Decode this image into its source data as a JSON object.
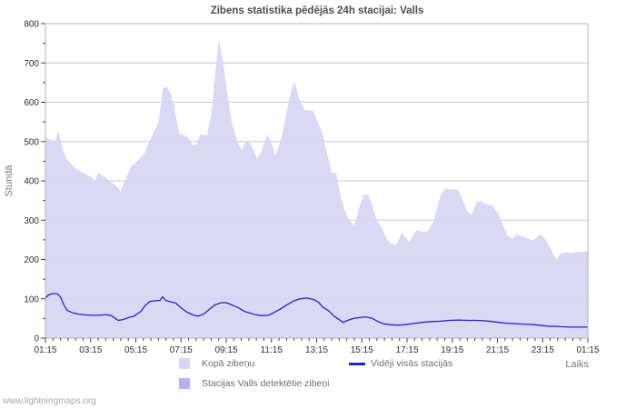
{
  "watermark": "www.lightningmaps.org",
  "chart_data": {
    "type": "area",
    "title": "Zibens statistika pēdējās 24h stacijai: Valls",
    "xlabel": "Laiks",
    "ylabel": "Stundā",
    "ylim": [
      0,
      800
    ],
    "yticks": [
      0,
      100,
      200,
      300,
      400,
      500,
      600,
      700,
      800
    ],
    "x_range_hours": [
      1.25,
      25.25
    ],
    "xticks": [
      {
        "h": 1.25,
        "label": "01:15"
      },
      {
        "h": 3.25,
        "label": "03:15"
      },
      {
        "h": 5.25,
        "label": "05:15"
      },
      {
        "h": 7.25,
        "label": "07:15"
      },
      {
        "h": 9.25,
        "label": "09:15"
      },
      {
        "h": 11.25,
        "label": "11:15"
      },
      {
        "h": 13.25,
        "label": "13:15"
      },
      {
        "h": 15.25,
        "label": "15:15"
      },
      {
        "h": 17.25,
        "label": "17:15"
      },
      {
        "h": 19.25,
        "label": "19:15"
      },
      {
        "h": 21.25,
        "label": "21:15"
      },
      {
        "h": 23.25,
        "label": "23:15"
      },
      {
        "h": 25.25,
        "label": "01:15"
      }
    ],
    "grid": "horizontal",
    "legend_position": "bottom",
    "colors": {
      "grid": "#c9c9c9",
      "frame": "#b5b5b5",
      "tick": "#444444"
    },
    "series": [
      {
        "name": "Kopā zibeņu",
        "type": "area",
        "color": "#d6d6f5",
        "points": [
          [
            1.25,
            510
          ],
          [
            1.5,
            505
          ],
          [
            1.67,
            500
          ],
          [
            1.83,
            527
          ],
          [
            2.0,
            483
          ],
          [
            2.17,
            458
          ],
          [
            2.33,
            447
          ],
          [
            2.58,
            432
          ],
          [
            2.83,
            424
          ],
          [
            3.08,
            416
          ],
          [
            3.33,
            409
          ],
          [
            3.42,
            399
          ],
          [
            3.58,
            420
          ],
          [
            3.83,
            412
          ],
          [
            4.08,
            400
          ],
          [
            4.33,
            390
          ],
          [
            4.58,
            374
          ],
          [
            4.78,
            402
          ],
          [
            5.05,
            436
          ],
          [
            5.45,
            458
          ],
          [
            5.65,
            472
          ],
          [
            5.85,
            500
          ],
          [
            6.05,
            525
          ],
          [
            6.25,
            548
          ],
          [
            6.45,
            635
          ],
          [
            6.6,
            641
          ],
          [
            6.78,
            624
          ],
          [
            6.95,
            590
          ],
          [
            7.08,
            545
          ],
          [
            7.2,
            519
          ],
          [
            7.45,
            515
          ],
          [
            7.6,
            508
          ],
          [
            7.75,
            491
          ],
          [
            7.95,
            493
          ],
          [
            8.1,
            518
          ],
          [
            8.4,
            517
          ],
          [
            8.6,
            572
          ],
          [
            8.8,
            695
          ],
          [
            8.93,
            762
          ],
          [
            9.1,
            706
          ],
          [
            9.3,
            622
          ],
          [
            9.5,
            548
          ],
          [
            9.75,
            500
          ],
          [
            9.95,
            476
          ],
          [
            10.12,
            505
          ],
          [
            10.35,
            492
          ],
          [
            10.62,
            456
          ],
          [
            10.85,
            480
          ],
          [
            11.05,
            518
          ],
          [
            11.25,
            498
          ],
          [
            11.42,
            464
          ],
          [
            11.7,
            510
          ],
          [
            12.1,
            625
          ],
          [
            12.27,
            652
          ],
          [
            12.5,
            606
          ],
          [
            12.72,
            580
          ],
          [
            13.1,
            579
          ],
          [
            13.32,
            548
          ],
          [
            13.52,
            521
          ],
          [
            13.72,
            467
          ],
          [
            13.92,
            421
          ],
          [
            14.12,
            419
          ],
          [
            14.32,
            360
          ],
          [
            14.52,
            321
          ],
          [
            14.72,
            298
          ],
          [
            14.92,
            287
          ],
          [
            15.12,
            329
          ],
          [
            15.32,
            364
          ],
          [
            15.52,
            366
          ],
          [
            15.72,
            337
          ],
          [
            15.92,
            298
          ],
          [
            16.12,
            283
          ],
          [
            16.32,
            256
          ],
          [
            16.52,
            241
          ],
          [
            16.77,
            237
          ],
          [
            17.02,
            268
          ],
          [
            17.35,
            245
          ],
          [
            17.68,
            276
          ],
          [
            17.92,
            270
          ],
          [
            18.17,
            272
          ],
          [
            18.42,
            298
          ],
          [
            18.72,
            360
          ],
          [
            18.92,
            380
          ],
          [
            19.5,
            378
          ],
          [
            19.72,
            352
          ],
          [
            19.92,
            322
          ],
          [
            20.12,
            314
          ],
          [
            20.32,
            345
          ],
          [
            20.52,
            349
          ],
          [
            20.72,
            341
          ],
          [
            21.02,
            338
          ],
          [
            21.32,
            314
          ],
          [
            21.52,
            283
          ],
          [
            21.72,
            260
          ],
          [
            21.92,
            253
          ],
          [
            22.12,
            264
          ],
          [
            22.32,
            260
          ],
          [
            22.52,
            256
          ],
          [
            22.72,
            249
          ],
          [
            22.92,
            252
          ],
          [
            23.12,
            264
          ],
          [
            23.32,
            256
          ],
          [
            23.52,
            237
          ],
          [
            23.72,
            214
          ],
          [
            23.85,
            199
          ],
          [
            24.02,
            214
          ],
          [
            24.27,
            218
          ],
          [
            24.52,
            216
          ],
          [
            24.77,
            220
          ],
          [
            25.02,
            218
          ],
          [
            25.25,
            222
          ]
        ]
      },
      {
        "name": "Stacijas Valls detektētie zibeņi",
        "type": "area",
        "color": "#b2b2ec",
        "points": []
      },
      {
        "name": "Vidēji visās stacijās",
        "type": "line",
        "color": "#2222cc",
        "points": [
          [
            1.25,
            102
          ],
          [
            1.4,
            110
          ],
          [
            1.55,
            113
          ],
          [
            1.78,
            113
          ],
          [
            1.92,
            104
          ],
          [
            2.07,
            84
          ],
          [
            2.22,
            70
          ],
          [
            2.47,
            64
          ],
          [
            2.72,
            61
          ],
          [
            3.02,
            59
          ],
          [
            3.3,
            58
          ],
          [
            3.62,
            58
          ],
          [
            3.92,
            60
          ],
          [
            4.17,
            57
          ],
          [
            4.47,
            45
          ],
          [
            4.67,
            47
          ],
          [
            4.92,
            52
          ],
          [
            5.17,
            56
          ],
          [
            5.47,
            68
          ],
          [
            5.67,
            83
          ],
          [
            5.87,
            93
          ],
          [
            6.1,
            95
          ],
          [
            6.32,
            96
          ],
          [
            6.43,
            105
          ],
          [
            6.57,
            96
          ],
          [
            6.82,
            92
          ],
          [
            7.02,
            89
          ],
          [
            7.27,
            76
          ],
          [
            7.52,
            66
          ],
          [
            7.82,
            58
          ],
          [
            8.02,
            56
          ],
          [
            8.27,
            62
          ],
          [
            8.52,
            74
          ],
          [
            8.77,
            85
          ],
          [
            9.02,
            90
          ],
          [
            9.27,
            90
          ],
          [
            9.52,
            84
          ],
          [
            9.77,
            78
          ],
          [
            10.02,
            69
          ],
          [
            10.27,
            64
          ],
          [
            10.52,
            60
          ],
          [
            10.82,
            57
          ],
          [
            11.12,
            58
          ],
          [
            11.32,
            64
          ],
          [
            11.62,
            73
          ],
          [
            11.92,
            84
          ],
          [
            12.22,
            94
          ],
          [
            12.52,
            100
          ],
          [
            12.82,
            102
          ],
          [
            13.12,
            98
          ],
          [
            13.32,
            92
          ],
          [
            13.52,
            79
          ],
          [
            13.77,
            70
          ],
          [
            14.02,
            56
          ],
          [
            14.22,
            48
          ],
          [
            14.42,
            40
          ],
          [
            14.62,
            45
          ],
          [
            14.87,
            50
          ],
          [
            15.12,
            52
          ],
          [
            15.42,
            54
          ],
          [
            15.72,
            50
          ],
          [
            15.97,
            42
          ],
          [
            16.22,
            36
          ],
          [
            16.52,
            34
          ],
          [
            16.82,
            33
          ],
          [
            17.12,
            34
          ],
          [
            17.52,
            37
          ],
          [
            17.92,
            40
          ],
          [
            18.32,
            42
          ],
          [
            18.72,
            43
          ],
          [
            19.12,
            45
          ],
          [
            19.52,
            46
          ],
          [
            19.92,
            45
          ],
          [
            20.32,
            45
          ],
          [
            20.72,
            44
          ],
          [
            21.02,
            42
          ],
          [
            21.32,
            40
          ],
          [
            21.62,
            38
          ],
          [
            21.92,
            37
          ],
          [
            22.22,
            36
          ],
          [
            22.62,
            35
          ],
          [
            22.92,
            34
          ],
          [
            23.22,
            32
          ],
          [
            23.52,
            30
          ],
          [
            23.82,
            30
          ],
          [
            24.12,
            29
          ],
          [
            24.52,
            28
          ],
          [
            24.92,
            28
          ],
          [
            25.25,
            28
          ]
        ]
      }
    ]
  }
}
